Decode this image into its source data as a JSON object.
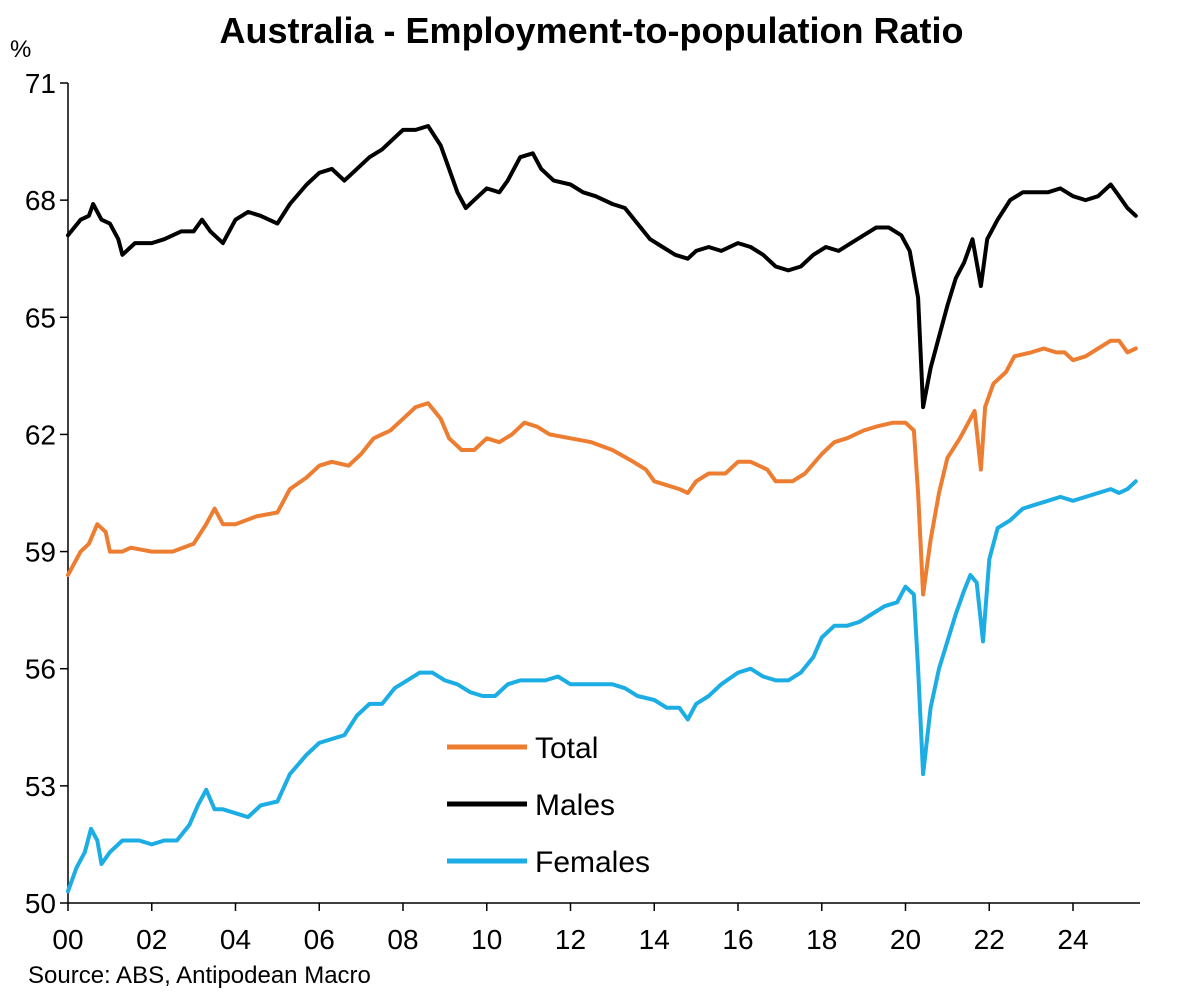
{
  "chart_data": {
    "type": "line",
    "title": "Australia - Employment-to-population Ratio",
    "y_unit": "%",
    "source": "Source: ABS, Antipodean Macro",
    "ylim": [
      50,
      71
    ],
    "yticks": [
      50,
      53,
      56,
      59,
      62,
      65,
      68,
      71
    ],
    "xlim": [
      2000,
      2025.6
    ],
    "xticks": [
      {
        "x": 2000,
        "label": "00"
      },
      {
        "x": 2002,
        "label": "02"
      },
      {
        "x": 2004,
        "label": "04"
      },
      {
        "x": 2006,
        "label": "06"
      },
      {
        "x": 2008,
        "label": "08"
      },
      {
        "x": 2010,
        "label": "10"
      },
      {
        "x": 2012,
        "label": "12"
      },
      {
        "x": 2014,
        "label": "14"
      },
      {
        "x": 2016,
        "label": "16"
      },
      {
        "x": 2018,
        "label": "18"
      },
      {
        "x": 2020,
        "label": "20"
      },
      {
        "x": 2022,
        "label": "22"
      },
      {
        "x": 2024,
        "label": "24"
      }
    ],
    "grid": false,
    "legend_position": "bottom-center",
    "series": [
      {
        "name": "Total",
        "color": "#ED7D31",
        "points": [
          [
            2000.0,
            58.4
          ],
          [
            2000.3,
            59.0
          ],
          [
            2000.5,
            59.2
          ],
          [
            2000.7,
            59.7
          ],
          [
            2000.9,
            59.5
          ],
          [
            2001.0,
            59.0
          ],
          [
            2001.3,
            59.0
          ],
          [
            2001.5,
            59.1
          ],
          [
            2002.0,
            59.0
          ],
          [
            2002.5,
            59.0
          ],
          [
            2003.0,
            59.2
          ],
          [
            2003.3,
            59.7
          ],
          [
            2003.5,
            60.1
          ],
          [
            2003.7,
            59.7
          ],
          [
            2004.0,
            59.7
          ],
          [
            2004.5,
            59.9
          ],
          [
            2005.0,
            60.0
          ],
          [
            2005.3,
            60.6
          ],
          [
            2005.7,
            60.9
          ],
          [
            2006.0,
            61.2
          ],
          [
            2006.3,
            61.3
          ],
          [
            2006.7,
            61.2
          ],
          [
            2007.0,
            61.5
          ],
          [
            2007.3,
            61.9
          ],
          [
            2007.7,
            62.1
          ],
          [
            2008.0,
            62.4
          ],
          [
            2008.3,
            62.7
          ],
          [
            2008.6,
            62.8
          ],
          [
            2008.9,
            62.4
          ],
          [
            2009.1,
            61.9
          ],
          [
            2009.4,
            61.6
          ],
          [
            2009.7,
            61.6
          ],
          [
            2010.0,
            61.9
          ],
          [
            2010.3,
            61.8
          ],
          [
            2010.6,
            62.0
          ],
          [
            2010.9,
            62.3
          ],
          [
            2011.2,
            62.2
          ],
          [
            2011.5,
            62.0
          ],
          [
            2012.0,
            61.9
          ],
          [
            2012.5,
            61.8
          ],
          [
            2013.0,
            61.6
          ],
          [
            2013.5,
            61.3
          ],
          [
            2013.8,
            61.1
          ],
          [
            2014.0,
            60.8
          ],
          [
            2014.3,
            60.7
          ],
          [
            2014.6,
            60.6
          ],
          [
            2014.8,
            60.5
          ],
          [
            2015.0,
            60.8
          ],
          [
            2015.3,
            61.0
          ],
          [
            2015.7,
            61.0
          ],
          [
            2016.0,
            61.3
          ],
          [
            2016.3,
            61.3
          ],
          [
            2016.7,
            61.1
          ],
          [
            2016.9,
            60.8
          ],
          [
            2017.3,
            60.8
          ],
          [
            2017.6,
            61.0
          ],
          [
            2018.0,
            61.5
          ],
          [
            2018.3,
            61.8
          ],
          [
            2018.6,
            61.9
          ],
          [
            2019.0,
            62.1
          ],
          [
            2019.3,
            62.2
          ],
          [
            2019.7,
            62.3
          ],
          [
            2020.0,
            62.3
          ],
          [
            2020.2,
            62.1
          ],
          [
            2020.3,
            60.5
          ],
          [
            2020.42,
            57.9
          ],
          [
            2020.6,
            59.3
          ],
          [
            2020.8,
            60.5
          ],
          [
            2021.0,
            61.4
          ],
          [
            2021.3,
            61.9
          ],
          [
            2021.5,
            62.3
          ],
          [
            2021.65,
            62.6
          ],
          [
            2021.8,
            61.1
          ],
          [
            2021.9,
            62.7
          ],
          [
            2022.1,
            63.3
          ],
          [
            2022.4,
            63.6
          ],
          [
            2022.6,
            64.0
          ],
          [
            2023.0,
            64.1
          ],
          [
            2023.3,
            64.2
          ],
          [
            2023.6,
            64.1
          ],
          [
            2023.8,
            64.1
          ],
          [
            2024.0,
            63.9
          ],
          [
            2024.3,
            64.0
          ],
          [
            2024.6,
            64.2
          ],
          [
            2024.9,
            64.4
          ],
          [
            2025.1,
            64.4
          ],
          [
            2025.3,
            64.1
          ],
          [
            2025.5,
            64.2
          ]
        ]
      },
      {
        "name": "Males",
        "color": "#000000",
        "points": [
          [
            2000.0,
            67.1
          ],
          [
            2000.3,
            67.5
          ],
          [
            2000.5,
            67.6
          ],
          [
            2000.6,
            67.9
          ],
          [
            2000.8,
            67.5
          ],
          [
            2001.0,
            67.4
          ],
          [
            2001.2,
            67.0
          ],
          [
            2001.3,
            66.6
          ],
          [
            2001.6,
            66.9
          ],
          [
            2002.0,
            66.9
          ],
          [
            2002.3,
            67.0
          ],
          [
            2002.7,
            67.2
          ],
          [
            2003.0,
            67.2
          ],
          [
            2003.2,
            67.5
          ],
          [
            2003.4,
            67.2
          ],
          [
            2003.7,
            66.9
          ],
          [
            2004.0,
            67.5
          ],
          [
            2004.3,
            67.7
          ],
          [
            2004.6,
            67.6
          ],
          [
            2004.8,
            67.5
          ],
          [
            2005.0,
            67.4
          ],
          [
            2005.3,
            67.9
          ],
          [
            2005.7,
            68.4
          ],
          [
            2006.0,
            68.7
          ],
          [
            2006.3,
            68.8
          ],
          [
            2006.6,
            68.5
          ],
          [
            2006.9,
            68.8
          ],
          [
            2007.2,
            69.1
          ],
          [
            2007.5,
            69.3
          ],
          [
            2007.8,
            69.6
          ],
          [
            2008.0,
            69.8
          ],
          [
            2008.3,
            69.8
          ],
          [
            2008.6,
            69.9
          ],
          [
            2008.9,
            69.4
          ],
          [
            2009.1,
            68.8
          ],
          [
            2009.3,
            68.2
          ],
          [
            2009.5,
            67.8
          ],
          [
            2009.7,
            68.0
          ],
          [
            2010.0,
            68.3
          ],
          [
            2010.3,
            68.2
          ],
          [
            2010.5,
            68.5
          ],
          [
            2010.8,
            69.1
          ],
          [
            2011.1,
            69.2
          ],
          [
            2011.3,
            68.8
          ],
          [
            2011.6,
            68.5
          ],
          [
            2012.0,
            68.4
          ],
          [
            2012.3,
            68.2
          ],
          [
            2012.6,
            68.1
          ],
          [
            2013.0,
            67.9
          ],
          [
            2013.3,
            67.8
          ],
          [
            2013.6,
            67.4
          ],
          [
            2013.9,
            67.0
          ],
          [
            2014.2,
            66.8
          ],
          [
            2014.5,
            66.6
          ],
          [
            2014.8,
            66.5
          ],
          [
            2015.0,
            66.7
          ],
          [
            2015.3,
            66.8
          ],
          [
            2015.6,
            66.7
          ],
          [
            2016.0,
            66.9
          ],
          [
            2016.3,
            66.8
          ],
          [
            2016.6,
            66.6
          ],
          [
            2016.9,
            66.3
          ],
          [
            2017.2,
            66.2
          ],
          [
            2017.5,
            66.3
          ],
          [
            2017.8,
            66.6
          ],
          [
            2018.1,
            66.8
          ],
          [
            2018.4,
            66.7
          ],
          [
            2018.7,
            66.9
          ],
          [
            2019.0,
            67.1
          ],
          [
            2019.3,
            67.3
          ],
          [
            2019.6,
            67.3
          ],
          [
            2019.9,
            67.1
          ],
          [
            2020.1,
            66.7
          ],
          [
            2020.3,
            65.5
          ],
          [
            2020.42,
            62.7
          ],
          [
            2020.6,
            63.7
          ],
          [
            2020.8,
            64.5
          ],
          [
            2021.0,
            65.3
          ],
          [
            2021.2,
            66.0
          ],
          [
            2021.4,
            66.4
          ],
          [
            2021.6,
            67.0
          ],
          [
            2021.8,
            65.8
          ],
          [
            2021.95,
            67.0
          ],
          [
            2022.2,
            67.5
          ],
          [
            2022.5,
            68.0
          ],
          [
            2022.8,
            68.2
          ],
          [
            2023.1,
            68.2
          ],
          [
            2023.4,
            68.2
          ],
          [
            2023.7,
            68.3
          ],
          [
            2024.0,
            68.1
          ],
          [
            2024.3,
            68.0
          ],
          [
            2024.6,
            68.1
          ],
          [
            2024.9,
            68.4
          ],
          [
            2025.1,
            68.1
          ],
          [
            2025.3,
            67.8
          ],
          [
            2025.5,
            67.6
          ]
        ]
      },
      {
        "name": "Females",
        "color": "#1BADE3",
        "points": [
          [
            2000.0,
            50.3
          ],
          [
            2000.2,
            50.9
          ],
          [
            2000.4,
            51.3
          ],
          [
            2000.55,
            51.9
          ],
          [
            2000.7,
            51.6
          ],
          [
            2000.8,
            51.0
          ],
          [
            2001.0,
            51.3
          ],
          [
            2001.3,
            51.6
          ],
          [
            2001.7,
            51.6
          ],
          [
            2002.0,
            51.5
          ],
          [
            2002.3,
            51.6
          ],
          [
            2002.6,
            51.6
          ],
          [
            2002.9,
            52.0
          ],
          [
            2003.1,
            52.5
          ],
          [
            2003.3,
            52.9
          ],
          [
            2003.5,
            52.4
          ],
          [
            2003.7,
            52.4
          ],
          [
            2004.0,
            52.3
          ],
          [
            2004.3,
            52.2
          ],
          [
            2004.6,
            52.5
          ],
          [
            2005.0,
            52.6
          ],
          [
            2005.3,
            53.3
          ],
          [
            2005.7,
            53.8
          ],
          [
            2006.0,
            54.1
          ],
          [
            2006.3,
            54.2
          ],
          [
            2006.6,
            54.3
          ],
          [
            2006.9,
            54.8
          ],
          [
            2007.2,
            55.1
          ],
          [
            2007.5,
            55.1
          ],
          [
            2007.8,
            55.5
          ],
          [
            2008.1,
            55.7
          ],
          [
            2008.4,
            55.9
          ],
          [
            2008.7,
            55.9
          ],
          [
            2009.0,
            55.7
          ],
          [
            2009.3,
            55.6
          ],
          [
            2009.6,
            55.4
          ],
          [
            2009.9,
            55.3
          ],
          [
            2010.2,
            55.3
          ],
          [
            2010.5,
            55.6
          ],
          [
            2010.8,
            55.7
          ],
          [
            2011.1,
            55.7
          ],
          [
            2011.4,
            55.7
          ],
          [
            2011.7,
            55.8
          ],
          [
            2012.0,
            55.6
          ],
          [
            2012.3,
            55.6
          ],
          [
            2012.7,
            55.6
          ],
          [
            2013.0,
            55.6
          ],
          [
            2013.3,
            55.5
          ],
          [
            2013.6,
            55.3
          ],
          [
            2014.0,
            55.2
          ],
          [
            2014.3,
            55.0
          ],
          [
            2014.6,
            55.0
          ],
          [
            2014.8,
            54.7
          ],
          [
            2015.0,
            55.1
          ],
          [
            2015.3,
            55.3
          ],
          [
            2015.6,
            55.6
          ],
          [
            2016.0,
            55.9
          ],
          [
            2016.3,
            56.0
          ],
          [
            2016.6,
            55.8
          ],
          [
            2016.9,
            55.7
          ],
          [
            2017.2,
            55.7
          ],
          [
            2017.5,
            55.9
          ],
          [
            2017.8,
            56.3
          ],
          [
            2018.0,
            56.8
          ],
          [
            2018.3,
            57.1
          ],
          [
            2018.6,
            57.1
          ],
          [
            2018.9,
            57.2
          ],
          [
            2019.2,
            57.4
          ],
          [
            2019.5,
            57.6
          ],
          [
            2019.8,
            57.7
          ],
          [
            2020.0,
            58.1
          ],
          [
            2020.2,
            57.9
          ],
          [
            2020.3,
            56.0
          ],
          [
            2020.42,
            53.3
          ],
          [
            2020.6,
            55.0
          ],
          [
            2020.8,
            56.0
          ],
          [
            2021.0,
            56.7
          ],
          [
            2021.2,
            57.4
          ],
          [
            2021.4,
            58.0
          ],
          [
            2021.55,
            58.4
          ],
          [
            2021.7,
            58.2
          ],
          [
            2021.85,
            56.7
          ],
          [
            2022.0,
            58.8
          ],
          [
            2022.2,
            59.6
          ],
          [
            2022.5,
            59.8
          ],
          [
            2022.8,
            60.1
          ],
          [
            2023.1,
            60.2
          ],
          [
            2023.4,
            60.3
          ],
          [
            2023.7,
            60.4
          ],
          [
            2024.0,
            60.3
          ],
          [
            2024.3,
            60.4
          ],
          [
            2024.6,
            60.5
          ],
          [
            2024.9,
            60.6
          ],
          [
            2025.1,
            60.5
          ],
          [
            2025.3,
            60.6
          ],
          [
            2025.5,
            60.8
          ]
        ]
      }
    ]
  }
}
